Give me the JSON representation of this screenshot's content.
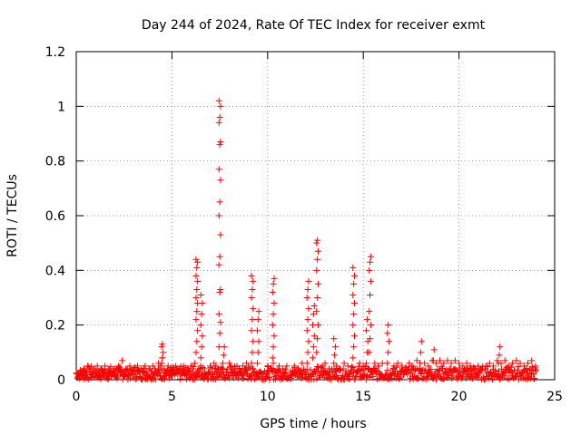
{
  "chart_data": {
    "type": "scatter",
    "title": "Day 244 of 2024, Rate Of TEC Index for receiver exmt",
    "xlabel": "GPS time / hours",
    "ylabel": "ROTI / TECUs",
    "xlim": [
      0,
      25
    ],
    "ylim": [
      0,
      1.2
    ],
    "xticks": [
      0,
      5,
      10,
      15,
      20,
      25
    ],
    "xtick_labels": [
      "0",
      "5",
      "10",
      "15",
      "20",
      "25"
    ],
    "yticks": [
      0,
      0.2,
      0.4,
      0.6,
      0.8,
      1.0,
      1.2
    ],
    "ytick_labels": [
      "0",
      "0.2",
      "0.4",
      "0.6",
      "0.8",
      "1",
      "1.2"
    ],
    "grid": true,
    "marker": "+",
    "color": "#ff0000",
    "background_noise": {
      "x_range": [
        0,
        24
      ],
      "typical_max": 0.05,
      "points": [
        [
          0.1,
          0.02
        ],
        [
          0.2,
          0.03
        ],
        [
          0.3,
          0.01
        ],
        [
          0.4,
          0.04
        ],
        [
          0.5,
          0.02
        ],
        [
          0.6,
          0.05
        ],
        [
          0.7,
          0.03
        ],
        [
          0.8,
          0.02
        ],
        [
          0.9,
          0.04
        ],
        [
          1.0,
          0.03
        ],
        [
          1.1,
          0.05
        ],
        [
          1.2,
          0.02
        ],
        [
          1.3,
          0.04
        ],
        [
          1.4,
          0.03
        ],
        [
          1.5,
          0.05
        ],
        [
          1.6,
          0.02
        ],
        [
          1.7,
          0.04
        ],
        [
          1.8,
          0.03
        ],
        [
          1.9,
          0.02
        ],
        [
          2.0,
          0.04
        ],
        [
          2.1,
          0.03
        ],
        [
          2.2,
          0.05
        ],
        [
          2.3,
          0.02
        ],
        [
          2.4,
          0.07
        ],
        [
          2.5,
          0.03
        ],
        [
          2.6,
          0.04
        ],
        [
          2.7,
          0.02
        ],
        [
          2.8,
          0.05
        ],
        [
          2.9,
          0.03
        ],
        [
          3.0,
          0.04
        ],
        [
          3.1,
          0.02
        ],
        [
          3.2,
          0.05
        ],
        [
          3.3,
          0.03
        ],
        [
          3.4,
          0.04
        ],
        [
          3.5,
          0.02
        ],
        [
          3.6,
          0.05
        ],
        [
          3.7,
          0.03
        ],
        [
          3.8,
          0.04
        ],
        [
          3.9,
          0.03
        ],
        [
          4.0,
          0.05
        ],
        [
          4.1,
          0.04
        ],
        [
          4.2,
          0.03
        ],
        [
          4.3,
          0.06
        ],
        [
          4.4,
          0.05
        ],
        [
          4.5,
          0.08
        ],
        [
          4.6,
          0.04
        ],
        [
          4.7,
          0.03
        ],
        [
          4.8,
          0.05
        ],
        [
          4.9,
          0.02
        ],
        [
          5.0,
          0.04
        ],
        [
          5.1,
          0.03
        ],
        [
          5.2,
          0.05
        ],
        [
          5.3,
          0.02
        ],
        [
          5.4,
          0.04
        ],
        [
          5.5,
          0.03
        ],
        [
          5.6,
          0.05
        ],
        [
          5.7,
          0.02
        ],
        [
          5.8,
          0.04
        ],
        [
          5.9,
          0.03
        ],
        [
          6.0,
          0.05
        ],
        [
          6.1,
          0.04
        ],
        [
          6.2,
          0.06
        ],
        [
          6.5,
          0.05
        ],
        [
          6.7,
          0.04
        ],
        [
          6.9,
          0.03
        ],
        [
          7.0,
          0.05
        ],
        [
          7.1,
          0.04
        ],
        [
          7.2,
          0.06
        ],
        [
          7.3,
          0.05
        ],
        [
          7.4,
          0.04
        ],
        [
          8.0,
          0.06
        ],
        [
          8.1,
          0.05
        ],
        [
          8.2,
          0.04
        ],
        [
          8.3,
          0.03
        ],
        [
          8.4,
          0.05
        ],
        [
          8.5,
          0.04
        ],
        [
          8.6,
          0.03
        ],
        [
          8.7,
          0.05
        ],
        [
          8.8,
          0.04
        ],
        [
          8.9,
          0.06
        ],
        [
          9.0,
          0.05
        ],
        [
          9.1,
          0.04
        ],
        [
          10.0,
          0.05
        ],
        [
          10.2,
          0.04
        ],
        [
          10.3,
          0.06
        ],
        [
          10.4,
          0.03
        ],
        [
          10.6,
          0.05
        ],
        [
          10.8,
          0.04
        ],
        [
          11.0,
          0.05
        ],
        [
          11.2,
          0.03
        ],
        [
          11.4,
          0.05
        ],
        [
          11.6,
          0.04
        ],
        [
          11.8,
          0.06
        ],
        [
          12.9,
          0.05
        ],
        [
          13.0,
          0.06
        ],
        [
          13.2,
          0.04
        ],
        [
          13.6,
          0.05
        ],
        [
          13.8,
          0.04
        ],
        [
          14.0,
          0.06
        ],
        [
          14.2,
          0.05
        ],
        [
          14.8,
          0.06
        ],
        [
          15.0,
          0.05
        ],
        [
          15.6,
          0.06
        ],
        [
          15.8,
          0.05
        ],
        [
          16.0,
          0.06
        ],
        [
          16.6,
          0.05
        ],
        [
          16.8,
          0.06
        ],
        [
          17.0,
          0.05
        ],
        [
          17.2,
          0.04
        ],
        [
          17.4,
          0.06
        ],
        [
          17.6,
          0.05
        ],
        [
          17.8,
          0.07
        ],
        [
          18.2,
          0.06
        ],
        [
          18.4,
          0.05
        ],
        [
          18.6,
          0.07
        ],
        [
          18.8,
          0.06
        ],
        [
          19.0,
          0.07
        ],
        [
          19.2,
          0.06
        ],
        [
          19.4,
          0.07
        ],
        [
          19.6,
          0.06
        ],
        [
          19.8,
          0.07
        ],
        [
          20.0,
          0.06
        ],
        [
          20.2,
          0.05
        ],
        [
          20.4,
          0.06
        ],
        [
          20.6,
          0.05
        ],
        [
          20.8,
          0.04
        ],
        [
          21.0,
          0.05
        ],
        [
          21.2,
          0.04
        ],
        [
          21.4,
          0.05
        ],
        [
          21.6,
          0.06
        ],
        [
          21.8,
          0.05
        ],
        [
          22.0,
          0.07
        ],
        [
          22.2,
          0.06
        ],
        [
          22.4,
          0.07
        ],
        [
          22.6,
          0.05
        ],
        [
          22.8,
          0.06
        ],
        [
          23.0,
          0.07
        ],
        [
          23.2,
          0.06
        ],
        [
          23.4,
          0.05
        ],
        [
          23.6,
          0.06
        ],
        [
          23.8,
          0.07
        ],
        [
          24.0,
          0.05
        ]
      ]
    },
    "spikes": [
      {
        "x": 4.5,
        "values": [
          0.06,
          0.08,
          0.1,
          0.12,
          0.13
        ]
      },
      {
        "x": 6.3,
        "values": [
          0.1,
          0.14,
          0.18,
          0.22,
          0.25,
          0.28,
          0.3,
          0.33,
          0.36,
          0.38,
          0.41,
          0.43,
          0.44
        ]
      },
      {
        "x": 6.55,
        "values": [
          0.08,
          0.12,
          0.16,
          0.2,
          0.24,
          0.28,
          0.31
        ]
      },
      {
        "x": 7.5,
        "values": [
          0.12,
          0.17,
          0.21,
          0.24,
          0.32,
          0.33,
          0.42,
          0.45,
          0.53,
          0.6,
          0.65,
          0.73,
          0.77,
          0.86,
          0.87,
          0.94,
          0.96,
          1.0,
          1.02
        ]
      },
      {
        "x": 7.7,
        "values": [
          0.06,
          0.09,
          0.12
        ]
      },
      {
        "x": 9.2,
        "values": [
          0.06,
          0.1,
          0.14,
          0.18,
          0.22,
          0.26,
          0.3,
          0.33,
          0.36,
          0.38
        ]
      },
      {
        "x": 9.5,
        "values": [
          0.06,
          0.1,
          0.14,
          0.18,
          0.22,
          0.25
        ]
      },
      {
        "x": 10.3,
        "values": [
          0.08,
          0.12,
          0.16,
          0.2,
          0.24,
          0.28,
          0.32,
          0.35,
          0.37
        ]
      },
      {
        "x": 12.1,
        "values": [
          0.06,
          0.1,
          0.14,
          0.18,
          0.22,
          0.26,
          0.3,
          0.33,
          0.36
        ]
      },
      {
        "x": 12.4,
        "values": [
          0.08,
          0.12,
          0.16,
          0.2,
          0.24,
          0.27
        ]
      },
      {
        "x": 12.6,
        "values": [
          0.1,
          0.15,
          0.2,
          0.25,
          0.3,
          0.35,
          0.4,
          0.44,
          0.47,
          0.5,
          0.51
        ]
      },
      {
        "x": 13.5,
        "values": [
          0.06,
          0.09,
          0.12,
          0.15
        ]
      },
      {
        "x": 14.5,
        "values": [
          0.08,
          0.12,
          0.16,
          0.2,
          0.24,
          0.28,
          0.31,
          0.35,
          0.38,
          0.41
        ]
      },
      {
        "x": 15.2,
        "values": [
          0.06,
          0.1,
          0.14,
          0.18,
          0.22
        ]
      },
      {
        "x": 15.35,
        "values": [
          0.1,
          0.15,
          0.2,
          0.25,
          0.31,
          0.36,
          0.4,
          0.43,
          0.45
        ]
      },
      {
        "x": 16.3,
        "values": [
          0.06,
          0.1,
          0.14,
          0.17,
          0.2
        ]
      },
      {
        "x": 18.0,
        "values": [
          0.06,
          0.1,
          0.14
        ]
      },
      {
        "x": 18.7,
        "values": [
          0.07,
          0.11
        ]
      },
      {
        "x": 22.1,
        "values": [
          0.06,
          0.09,
          0.12
        ]
      }
    ]
  }
}
